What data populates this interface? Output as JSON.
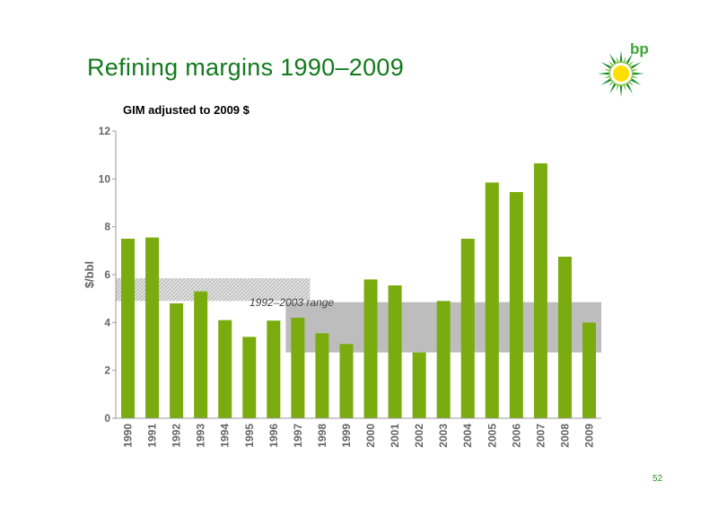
{
  "slide": {
    "title": "Refining margins 1990–2009",
    "page_number": "52",
    "logo_text": "bp"
  },
  "colors": {
    "title": "#127a1c",
    "bar": "#7aab0f",
    "range_band": "#bdbdbd",
    "range_band_early": "#d2d2d2",
    "axis": "#999999",
    "tick_text": "#666666"
  },
  "chart_data": {
    "type": "bar",
    "title": "GIM adjusted to 2009 $",
    "xlabel": "",
    "ylabel": "$/bbl",
    "ylim": [
      0,
      12
    ],
    "yticks": [
      0,
      2,
      4,
      6,
      8,
      10,
      12
    ],
    "grid": false,
    "legend": "none",
    "categories": [
      "1990",
      "1991",
      "1992",
      "1993",
      "1994",
      "1995",
      "1996",
      "1997",
      "1998",
      "1999",
      "2000",
      "2001",
      "2002",
      "2003",
      "2004",
      "2005",
      "2006",
      "2007",
      "2008",
      "2009"
    ],
    "values": [
      7.5,
      7.55,
      4.8,
      5.3,
      4.1,
      3.4,
      4.08,
      4.2,
      3.55,
      3.1,
      5.8,
      5.55,
      2.75,
      4.9,
      7.5,
      9.85,
      9.45,
      10.65,
      6.75,
      4.0
    ],
    "annotations": [
      {
        "text": "1992–2003 range",
        "type": "band",
        "bands": [
          {
            "x_start": "1990",
            "x_end": "1997",
            "y_low": 4.9,
            "y_high": 5.85,
            "pattern": "hatched"
          },
          {
            "x_start": "1997",
            "x_end": "2009",
            "y_low": 2.75,
            "y_high": 4.85,
            "pattern": "solid"
          }
        ]
      }
    ]
  }
}
